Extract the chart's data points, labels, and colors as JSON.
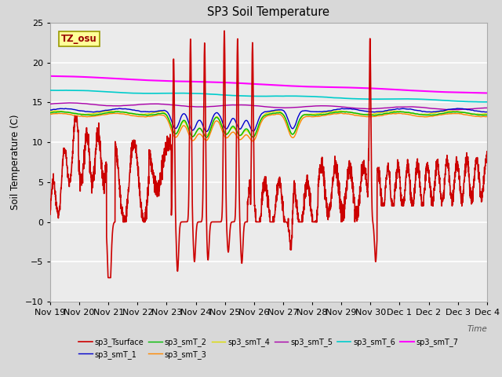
{
  "title": "SP3 Soil Temperature",
  "ylabel": "Soil Temperature (C)",
  "xlabel": "Time",
  "tz_label": "TZ_osu",
  "ylim": [
    -10,
    25
  ],
  "xlim": [
    0,
    15.5
  ],
  "yticks": [
    -10,
    -5,
    0,
    5,
    10,
    15,
    20,
    25
  ],
  "xtick_labels": [
    "Nov 19",
    "Nov 20",
    "Nov 21",
    "Nov 22",
    "Nov 23",
    "Nov 24",
    "Nov 25",
    "Nov 26",
    "Nov 27",
    "Nov 28",
    "Nov 29",
    "Nov 30",
    "Dec 1",
    "Dec 2",
    "Dec 3",
    "Dec 4"
  ],
  "legend": [
    {
      "label": "sp3_Tsurface",
      "color": "#cc0000",
      "lw": 1.2
    },
    {
      "label": "sp3_smT_1",
      "color": "#0000cc",
      "lw": 1.0
    },
    {
      "label": "sp3_smT_2",
      "color": "#00bb00",
      "lw": 1.0
    },
    {
      "label": "sp3_smT_3",
      "color": "#ff8800",
      "lw": 1.0
    },
    {
      "label": "sp3_smT_4",
      "color": "#dddd00",
      "lw": 1.0
    },
    {
      "label": "sp3_smT_5",
      "color": "#aa00aa",
      "lw": 1.0
    },
    {
      "label": "sp3_smT_6",
      "color": "#00cccc",
      "lw": 1.2
    },
    {
      "label": "sp3_smT_7",
      "color": "#ff00ff",
      "lw": 1.5
    }
  ],
  "bg_color": "#d8d8d8",
  "plot_bg_color": "#ebebeb",
  "grid_color": "#ffffff",
  "tz_box_color": "#ffff99",
  "tz_text_color": "#990000"
}
